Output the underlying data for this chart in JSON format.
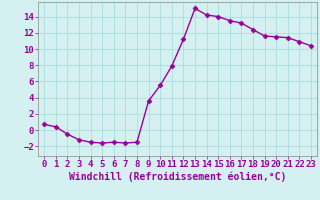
{
  "x": [
    0,
    1,
    2,
    3,
    4,
    5,
    6,
    7,
    8,
    9,
    10,
    11,
    12,
    13,
    14,
    15,
    16,
    17,
    18,
    19,
    20,
    21,
    22,
    23
  ],
  "y": [
    0.7,
    0.4,
    -0.5,
    -1.2,
    -1.5,
    -1.6,
    -1.5,
    -1.6,
    -1.5,
    3.6,
    5.5,
    7.9,
    11.2,
    15.0,
    14.2,
    14.0,
    13.5,
    13.2,
    12.4,
    11.6,
    11.5,
    11.4,
    10.9,
    10.4
  ],
  "line_color": "#990099",
  "marker": "D",
  "marker_size": 2.5,
  "background_color": "#d4f0f0",
  "grid_color": "#aadddd",
  "xlabel": "Windchill (Refroidissement éolien,°C)",
  "ylabel": "",
  "title": "",
  "xlim": [
    -0.5,
    23.5
  ],
  "ylim": [
    -3.2,
    15.8
  ],
  "yticks": [
    -2,
    0,
    2,
    4,
    6,
    8,
    10,
    12,
    14
  ],
  "xticks": [
    0,
    1,
    2,
    3,
    4,
    5,
    6,
    7,
    8,
    9,
    10,
    11,
    12,
    13,
    14,
    15,
    16,
    17,
    18,
    19,
    20,
    21,
    22,
    23
  ],
  "tick_color": "#990099",
  "label_color": "#990099",
  "xlabel_fontsize": 7.0,
  "tick_fontsize": 6.5,
  "line_width": 1.0
}
